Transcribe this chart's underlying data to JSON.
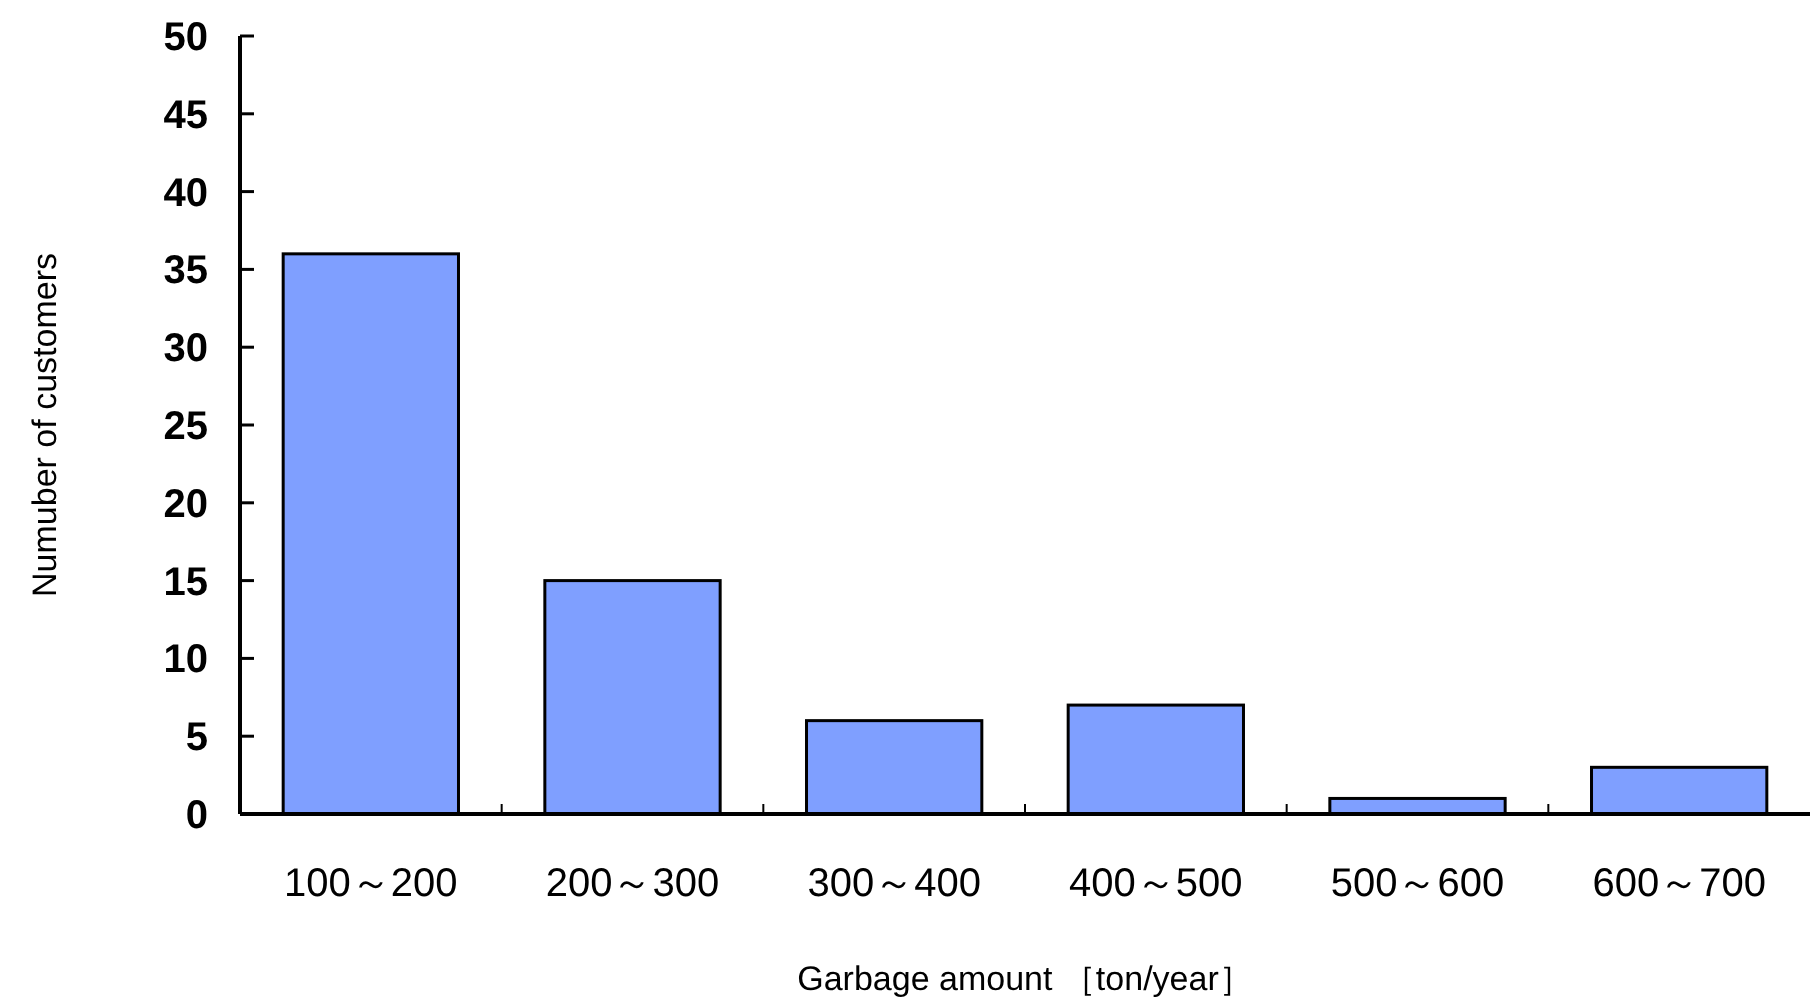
{
  "chart_data": {
    "type": "bar",
    "xlabel": "Garbage amount ［ton/year］",
    "ylabel": "Numuber of customers",
    "categories": [
      "100～200",
      "200～300",
      "300～400",
      "400～500",
      "500～600",
      "600～700"
    ],
    "values": [
      36,
      15,
      6,
      7,
      1,
      3
    ],
    "color": "#7f9fff",
    "ylim": [
      0,
      50
    ],
    "yticks": [
      0,
      5,
      10,
      15,
      20,
      25,
      30,
      35,
      40,
      45,
      50
    ]
  }
}
